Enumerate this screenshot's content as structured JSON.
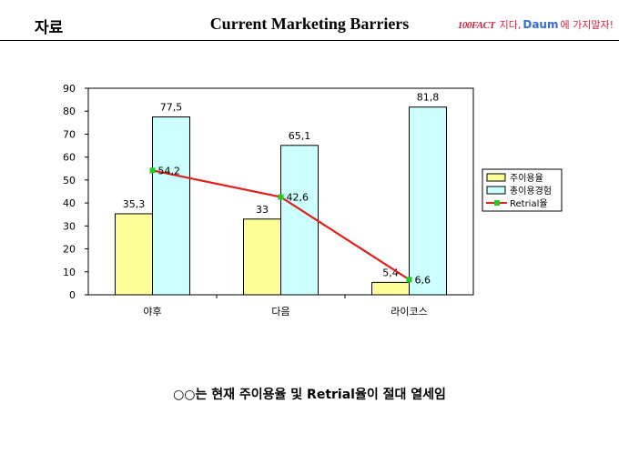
{
  "header": {
    "section_label": "자료",
    "title": "Current Marketing Barriers",
    "brand": {
      "logo_1": "100FACT",
      "text_1": "지다,",
      "logo_2": "Daum",
      "text_2": "에 가지말자!"
    }
  },
  "chart_data": {
    "type": "bar",
    "categories": [
      "야후",
      "다음",
      "라이코스"
    ],
    "series": [
      {
        "name": "주이용율",
        "kind": "bar",
        "values": [
          35.3,
          33,
          5.4
        ],
        "labels": [
          "35,3",
          "33",
          "5,4"
        ],
        "color": "#FFFF99"
      },
      {
        "name": "총이용경험",
        "kind": "bar",
        "values": [
          77.5,
          65.1,
          81.8
        ],
        "labels": [
          "77,5",
          "65,1",
          "81,8"
        ],
        "color": "#CCFFFF"
      },
      {
        "name": "Retrial율",
        "kind": "line",
        "values": [
          54.2,
          42.6,
          6.6
        ],
        "labels": [
          "54,2",
          "42,6",
          "6,6"
        ],
        "color": "#E0201A",
        "marker_color": "#22CC22"
      }
    ],
    "yticks": [
      "0",
      "10",
      "20",
      "30",
      "40",
      "50",
      "60",
      "70",
      "80",
      "90"
    ],
    "ylim": [
      0,
      90
    ],
    "legend_position": "right",
    "grid": false
  },
  "footnote": "○○는 현재 주이용율 및 Retrial율이 절대 열세임"
}
